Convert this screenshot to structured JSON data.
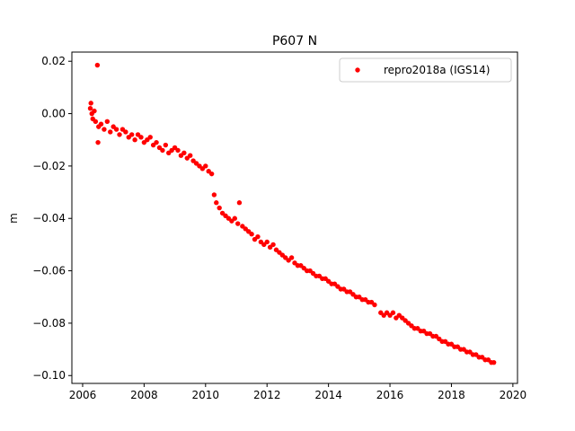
{
  "chart_data": {
    "type": "scatter",
    "title": "P607 N",
    "xlabel": "",
    "ylabel": "m",
    "xlim": [
      2005.65,
      2020.15
    ],
    "ylim": [
      -0.103,
      0.0235
    ],
    "xticks": [
      2006,
      2008,
      2010,
      2012,
      2014,
      2016,
      2018,
      2020
    ],
    "xtick_labels": [
      "2006",
      "2008",
      "2010",
      "2012",
      "2014",
      "2016",
      "2018",
      "2020"
    ],
    "yticks": [
      0.02,
      0.0,
      -0.02,
      -0.04,
      -0.06,
      -0.08,
      -0.1
    ],
    "ytick_labels": [
      "0.02",
      "0.00",
      "−0.02",
      "−0.04",
      "−0.06",
      "−0.08",
      "−0.10"
    ],
    "grid": false,
    "legend_position": "top-right",
    "series": [
      {
        "name": "repro2018a (IGS14)",
        "color": "#ff0000",
        "marker": "circle",
        "points": [
          [
            2006.25,
            0.002
          ],
          [
            2006.27,
            0.004
          ],
          [
            2006.3,
            0.0
          ],
          [
            2006.33,
            -0.002
          ],
          [
            2006.38,
            0.001
          ],
          [
            2006.42,
            -0.003
          ],
          [
            2006.48,
            0.0185
          ],
          [
            2006.5,
            -0.011
          ],
          [
            2006.52,
            -0.005
          ],
          [
            2006.6,
            -0.004
          ],
          [
            2006.7,
            -0.006
          ],
          [
            2006.8,
            -0.003
          ],
          [
            2006.9,
            -0.007
          ],
          [
            2007.0,
            -0.005
          ],
          [
            2007.1,
            -0.006
          ],
          [
            2007.2,
            -0.008
          ],
          [
            2007.3,
            -0.006
          ],
          [
            2007.4,
            -0.007
          ],
          [
            2007.5,
            -0.009
          ],
          [
            2007.6,
            -0.008
          ],
          [
            2007.7,
            -0.01
          ],
          [
            2007.8,
            -0.008
          ],
          [
            2007.9,
            -0.009
          ],
          [
            2008.0,
            -0.011
          ],
          [
            2008.1,
            -0.01
          ],
          [
            2008.2,
            -0.009
          ],
          [
            2008.3,
            -0.012
          ],
          [
            2008.4,
            -0.011
          ],
          [
            2008.5,
            -0.013
          ],
          [
            2008.6,
            -0.014
          ],
          [
            2008.7,
            -0.012
          ],
          [
            2008.8,
            -0.015
          ],
          [
            2008.9,
            -0.014
          ],
          [
            2009.0,
            -0.013
          ],
          [
            2009.1,
            -0.014
          ],
          [
            2009.2,
            -0.016
          ],
          [
            2009.3,
            -0.015
          ],
          [
            2009.4,
            -0.017
          ],
          [
            2009.5,
            -0.016
          ],
          [
            2009.6,
            -0.018
          ],
          [
            2009.7,
            -0.019
          ],
          [
            2009.8,
            -0.02
          ],
          [
            2009.9,
            -0.021
          ],
          [
            2010.0,
            -0.02
          ],
          [
            2010.1,
            -0.022
          ],
          [
            2010.2,
            -0.023
          ],
          [
            2010.28,
            -0.031
          ],
          [
            2010.35,
            -0.034
          ],
          [
            2010.45,
            -0.036
          ],
          [
            2010.55,
            -0.038
          ],
          [
            2010.65,
            -0.039
          ],
          [
            2010.75,
            -0.04
          ],
          [
            2010.85,
            -0.041
          ],
          [
            2010.95,
            -0.04
          ],
          [
            2011.05,
            -0.042
          ],
          [
            2011.1,
            -0.034
          ],
          [
            2011.2,
            -0.043
          ],
          [
            2011.3,
            -0.044
          ],
          [
            2011.4,
            -0.045
          ],
          [
            2011.5,
            -0.046
          ],
          [
            2011.6,
            -0.048
          ],
          [
            2011.7,
            -0.047
          ],
          [
            2011.8,
            -0.049
          ],
          [
            2011.9,
            -0.05
          ],
          [
            2012.0,
            -0.049
          ],
          [
            2012.1,
            -0.051
          ],
          [
            2012.2,
            -0.05
          ],
          [
            2012.3,
            -0.052
          ],
          [
            2012.4,
            -0.053
          ],
          [
            2012.5,
            -0.054
          ],
          [
            2012.6,
            -0.055
          ],
          [
            2012.7,
            -0.056
          ],
          [
            2012.8,
            -0.055
          ],
          [
            2012.9,
            -0.057
          ],
          [
            2013.0,
            -0.058
          ],
          [
            2013.1,
            -0.058
          ],
          [
            2013.2,
            -0.059
          ],
          [
            2013.3,
            -0.06
          ],
          [
            2013.4,
            -0.06
          ],
          [
            2013.5,
            -0.061
          ],
          [
            2013.6,
            -0.062
          ],
          [
            2013.7,
            -0.062
          ],
          [
            2013.8,
            -0.063
          ],
          [
            2013.9,
            -0.063
          ],
          [
            2014.0,
            -0.064
          ],
          [
            2014.1,
            -0.065
          ],
          [
            2014.2,
            -0.065
          ],
          [
            2014.3,
            -0.066
          ],
          [
            2014.4,
            -0.067
          ],
          [
            2014.5,
            -0.067
          ],
          [
            2014.6,
            -0.068
          ],
          [
            2014.7,
            -0.068
          ],
          [
            2014.8,
            -0.069
          ],
          [
            2014.9,
            -0.07
          ],
          [
            2015.0,
            -0.07
          ],
          [
            2015.1,
            -0.071
          ],
          [
            2015.2,
            -0.071
          ],
          [
            2015.3,
            -0.072
          ],
          [
            2015.4,
            -0.072
          ],
          [
            2015.5,
            -0.073
          ],
          [
            2015.7,
            -0.076
          ],
          [
            2015.8,
            -0.077
          ],
          [
            2015.9,
            -0.076
          ],
          [
            2016.0,
            -0.077
          ],
          [
            2016.1,
            -0.076
          ],
          [
            2016.2,
            -0.078
          ],
          [
            2016.3,
            -0.077
          ],
          [
            2016.4,
            -0.078
          ],
          [
            2016.5,
            -0.079
          ],
          [
            2016.6,
            -0.08
          ],
          [
            2016.7,
            -0.081
          ],
          [
            2016.8,
            -0.082
          ],
          [
            2016.9,
            -0.082
          ],
          [
            2017.0,
            -0.083
          ],
          [
            2017.1,
            -0.083
          ],
          [
            2017.2,
            -0.084
          ],
          [
            2017.3,
            -0.084
          ],
          [
            2017.4,
            -0.085
          ],
          [
            2017.5,
            -0.085
          ],
          [
            2017.6,
            -0.086
          ],
          [
            2017.7,
            -0.087
          ],
          [
            2017.8,
            -0.087
          ],
          [
            2017.9,
            -0.088
          ],
          [
            2018.0,
            -0.088
          ],
          [
            2018.1,
            -0.089
          ],
          [
            2018.2,
            -0.089
          ],
          [
            2018.3,
            -0.09
          ],
          [
            2018.4,
            -0.09
          ],
          [
            2018.5,
            -0.091
          ],
          [
            2018.6,
            -0.091
          ],
          [
            2018.7,
            -0.092
          ],
          [
            2018.8,
            -0.092
          ],
          [
            2018.9,
            -0.093
          ],
          [
            2019.0,
            -0.093
          ],
          [
            2019.1,
            -0.094
          ],
          [
            2019.2,
            -0.094
          ],
          [
            2019.3,
            -0.095
          ],
          [
            2019.38,
            -0.095
          ]
        ]
      }
    ]
  }
}
